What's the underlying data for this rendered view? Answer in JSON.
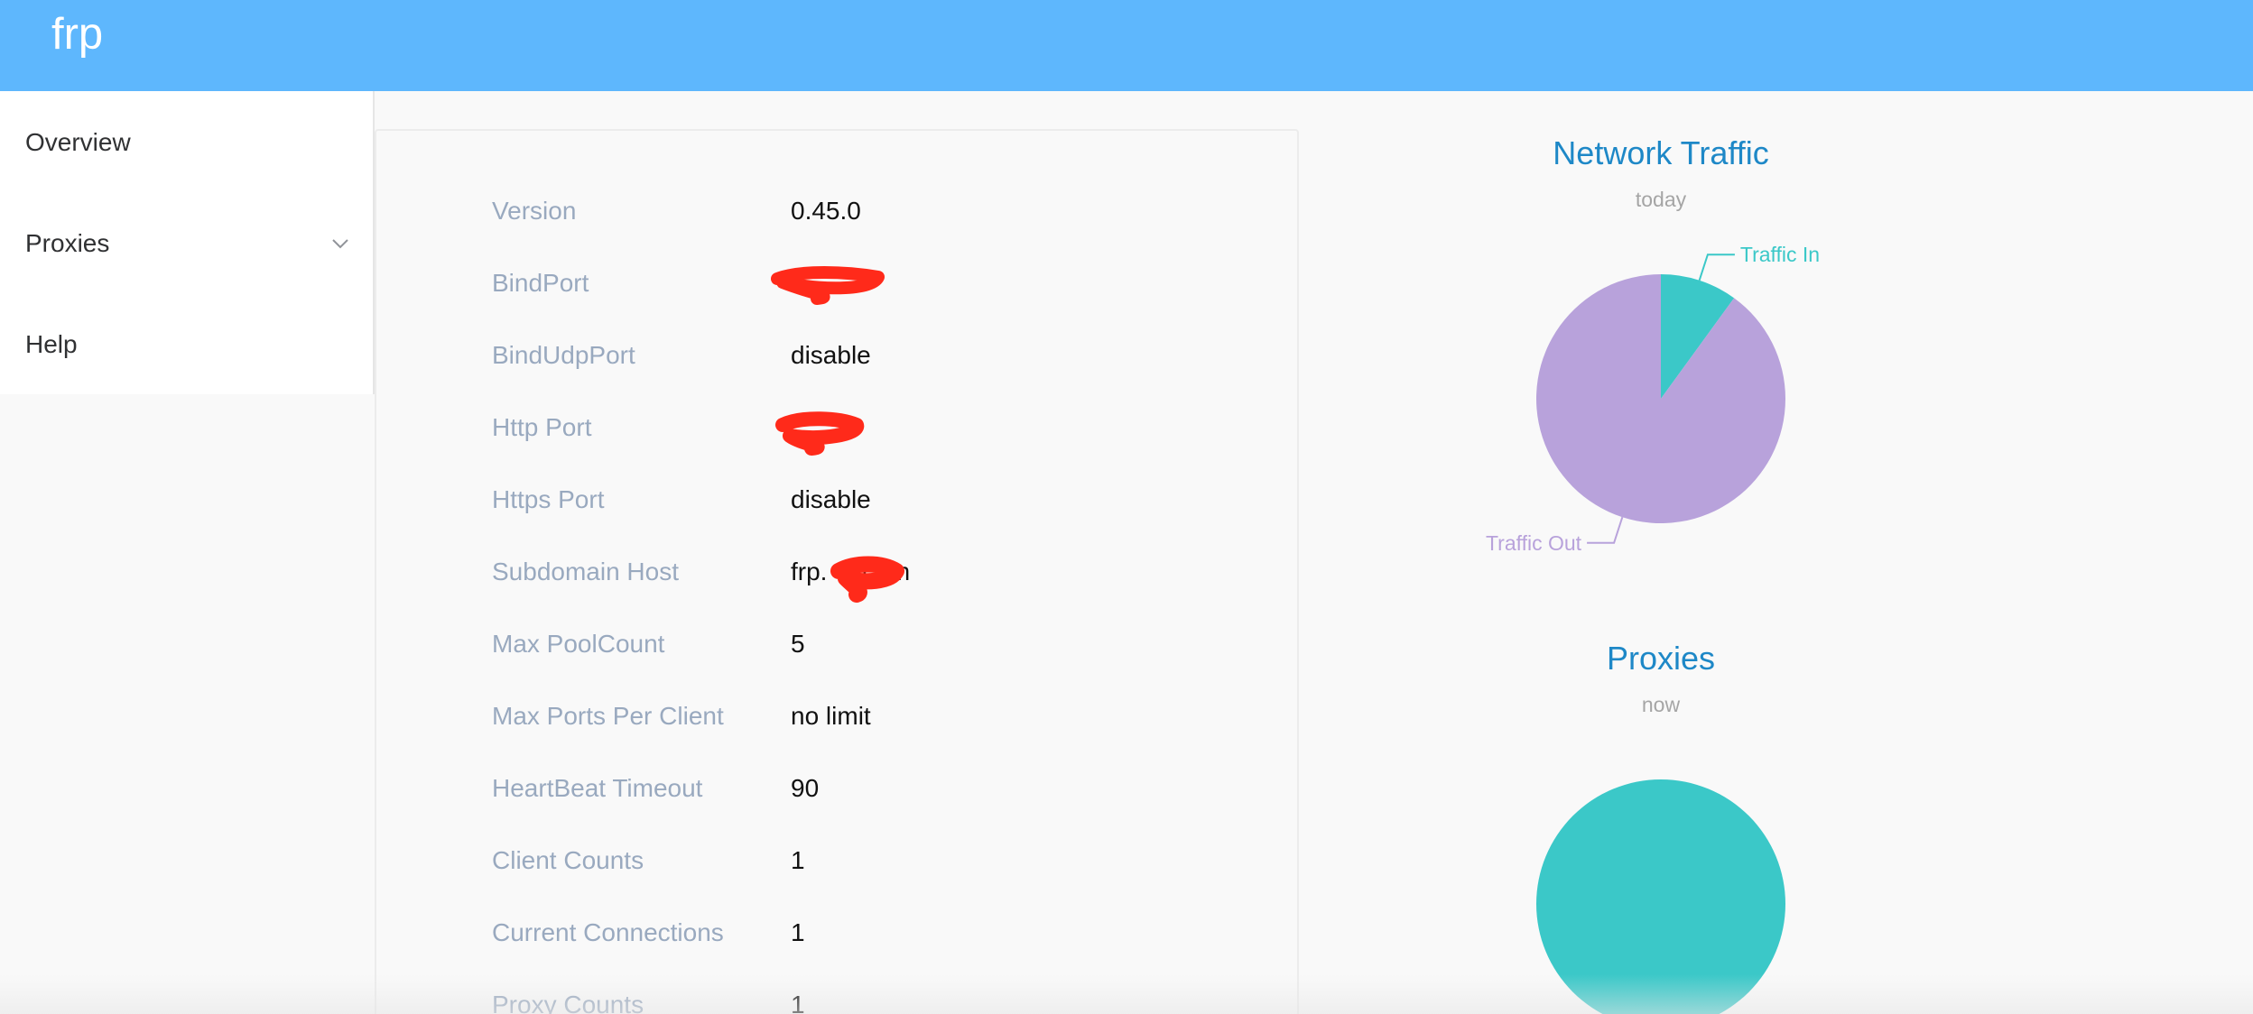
{
  "app": {
    "title": "frp"
  },
  "sidebar": {
    "items": [
      {
        "label": "Overview"
      },
      {
        "label": "Proxies"
      },
      {
        "label": "Help"
      }
    ]
  },
  "server_info": {
    "rows": [
      {
        "label": "Version",
        "value": "0.45.0"
      },
      {
        "label": "BindPort",
        "value": ""
      },
      {
        "label": "BindUdpPort",
        "value": "disable"
      },
      {
        "label": "Http Port",
        "value": ""
      },
      {
        "label": "Https Port",
        "value": "disable"
      },
      {
        "label": "Subdomain Host",
        "value": "frp.     com"
      },
      {
        "label": "Max PoolCount",
        "value": "5"
      },
      {
        "label": "Max Ports Per Client",
        "value": "no limit"
      },
      {
        "label": "HeartBeat Timeout",
        "value": "90"
      },
      {
        "label": "Client Counts",
        "value": "1"
      },
      {
        "label": "Current Connections",
        "value": "1"
      },
      {
        "label": "Proxy Counts",
        "value": "1"
      }
    ]
  },
  "chart_data": [
    {
      "type": "pie",
      "title": "Network Traffic",
      "subtitle": "today",
      "series": [
        {
          "name": "Traffic In",
          "value": 0.1,
          "color": "#3bc8c8"
        },
        {
          "name": "Traffic Out",
          "value": 0.9,
          "color": "#b8a2db"
        }
      ]
    },
    {
      "type": "pie",
      "title": "Proxies",
      "subtitle": "now",
      "series": [
        {
          "name": "",
          "value": 1,
          "color": "#3bc8c8"
        }
      ]
    }
  ],
  "colors": {
    "header": "#5eb7fd",
    "title_blue": "#1e88c7",
    "redaction": "#ff2a1a"
  }
}
